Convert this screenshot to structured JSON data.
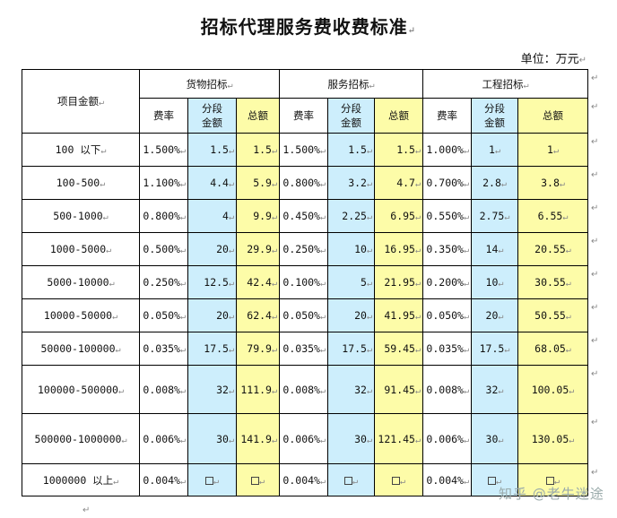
{
  "title": "招标代理服务费收费标准",
  "unit": "单位：万元",
  "para_mark": "↵",
  "headers": {
    "item": "项目金额",
    "groups": [
      "货物招标",
      "服务招标",
      "工程招标"
    ],
    "rate": "费率",
    "segment_line1": "分段",
    "segment_line2": "金额",
    "total": "总额"
  },
  "rows": [
    {
      "label": "100 以下",
      "g": [
        [
          "1.500%",
          "1.5",
          "1.5"
        ],
        [
          "1.500%",
          "1.5",
          "1.5"
        ],
        [
          "1.000%",
          "1",
          "1"
        ]
      ]
    },
    {
      "label": "100-500",
      "g": [
        [
          "1.100%",
          "4.4",
          "5.9"
        ],
        [
          "0.800%",
          "3.2",
          "4.7"
        ],
        [
          "0.700%",
          "2.8",
          "3.8"
        ]
      ]
    },
    {
      "label": "500-1000",
      "g": [
        [
          "0.800%",
          "4",
          "9.9"
        ],
        [
          "0.450%",
          "2.25",
          "6.95"
        ],
        [
          "0.550%",
          "2.75",
          "6.55"
        ]
      ]
    },
    {
      "label": "1000-5000",
      "g": [
        [
          "0.500%",
          "20",
          "29.9"
        ],
        [
          "0.250%",
          "10",
          "16.95"
        ],
        [
          "0.350%",
          "14",
          "20.55"
        ]
      ]
    },
    {
      "label": "5000-10000",
      "g": [
        [
          "0.250%",
          "12.5",
          "42.4"
        ],
        [
          "0.100%",
          "5",
          "21.95"
        ],
        [
          "0.200%",
          "10",
          "30.55"
        ]
      ]
    },
    {
      "label": "10000-50000",
      "g": [
        [
          "0.050%",
          "20",
          "62.4"
        ],
        [
          "0.050%",
          "20",
          "41.95"
        ],
        [
          "0.050%",
          "20",
          "50.55"
        ]
      ]
    },
    {
      "label": "50000-100000",
      "g": [
        [
          "0.035%",
          "17.5",
          "79.9"
        ],
        [
          "0.035%",
          "17.5",
          "59.45"
        ],
        [
          "0.035%",
          "17.5",
          "68.05"
        ]
      ]
    },
    {
      "label": "100000-500000",
      "g": [
        [
          "0.008%",
          "32",
          "111.9"
        ],
        [
          "0.008%",
          "32",
          "91.45"
        ],
        [
          "0.008%",
          "32",
          "100.05"
        ]
      ]
    },
    {
      "label": "500000-1000000",
      "g": [
        [
          "0.006%",
          "30",
          "141.9"
        ],
        [
          "0.006%",
          "30",
          "121.45"
        ],
        [
          "0.006%",
          "30",
          "130.05"
        ]
      ]
    },
    {
      "label": "1000000 以上",
      "g": [
        [
          "0.004%",
          "□",
          "□"
        ],
        [
          "0.004%",
          "□",
          "□"
        ],
        [
          "0.004%",
          "□",
          "□"
        ]
      ]
    }
  ],
  "watermark": "知乎 @老牛迷途"
}
